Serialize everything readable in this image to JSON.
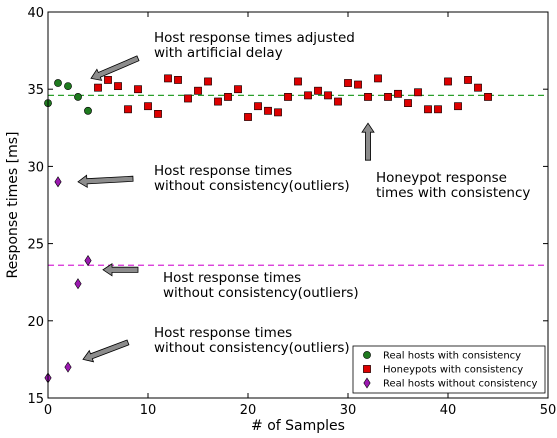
{
  "chart_data": {
    "type": "scatter",
    "xlabel": "# of Samples",
    "ylabel": "Response times [ms]",
    "xlim": [
      0,
      50
    ],
    "ylim": [
      15,
      40
    ],
    "xticks": [
      "0",
      "10",
      "20",
      "30",
      "40",
      "50"
    ],
    "yticks": [
      "15",
      "20",
      "25",
      "30",
      "35",
      "40"
    ],
    "grid": false,
    "legend_position": "bottom-right",
    "reference_lines": [
      {
        "y": 34.6,
        "color": "#2ca02c",
        "style": "dashed"
      },
      {
        "y": 23.6,
        "color": "#d62ad6",
        "style": "dashed"
      }
    ],
    "series": [
      {
        "name": "Real hosts with consistency",
        "marker": "circle",
        "color": "#1f7a1f",
        "points": [
          [
            0,
            34.1
          ],
          [
            1,
            35.4
          ],
          [
            2,
            35.2
          ],
          [
            3,
            34.5
          ],
          [
            4,
            33.6
          ]
        ]
      },
      {
        "name": "Honeypots with consistency",
        "marker": "square",
        "color": "#dd0000",
        "points": [
          [
            5,
            35.1
          ],
          [
            6,
            35.6
          ],
          [
            7,
            35.2
          ],
          [
            8,
            33.7
          ],
          [
            9,
            35.0
          ],
          [
            10,
            33.9
          ],
          [
            11,
            33.4
          ],
          [
            12,
            35.7
          ],
          [
            13,
            35.6
          ],
          [
            14,
            34.4
          ],
          [
            15,
            34.9
          ],
          [
            16,
            35.5
          ],
          [
            17,
            34.2
          ],
          [
            18,
            34.5
          ],
          [
            19,
            35.0
          ],
          [
            20,
            33.2
          ],
          [
            21,
            33.9
          ],
          [
            22,
            33.6
          ],
          [
            23,
            33.5
          ],
          [
            24,
            34.5
          ],
          [
            25,
            35.5
          ],
          [
            26,
            34.6
          ],
          [
            27,
            34.9
          ],
          [
            28,
            34.6
          ],
          [
            29,
            34.2
          ],
          [
            30,
            35.4
          ],
          [
            31,
            35.3
          ],
          [
            32,
            34.5
          ],
          [
            33,
            35.7
          ],
          [
            34,
            34.5
          ],
          [
            35,
            34.7
          ],
          [
            36,
            34.1
          ],
          [
            37,
            34.8
          ],
          [
            38,
            33.7
          ],
          [
            39,
            33.7
          ],
          [
            40,
            35.5
          ],
          [
            41,
            33.9
          ],
          [
            42,
            35.6
          ],
          [
            43,
            35.1
          ],
          [
            44,
            34.5
          ]
        ]
      },
      {
        "name": "Real hosts without consistency",
        "marker": "diamond",
        "color": "#9b19b0",
        "points": [
          [
            0,
            16.3
          ],
          [
            1,
            29.0
          ],
          [
            2,
            17.0
          ],
          [
            3,
            22.4
          ],
          [
            4,
            23.9
          ]
        ]
      }
    ],
    "annotations": [
      {
        "lines": [
          "Host response times adjusted",
          "with artificial delay"
        ],
        "arrow_from": [
          9.0,
          37.0
        ],
        "arrow_to": [
          4.3,
          35.7
        ]
      },
      {
        "lines": [
          "Host response times",
          "without consistency(outliers)"
        ],
        "arrow_from": [
          8.5,
          29.2
        ],
        "arrow_to": [
          3.0,
          29.0
        ]
      },
      {
        "lines": [
          "Honeypot response",
          "times with consistency"
        ],
        "arrow_from": [
          32.0,
          30.4
        ],
        "arrow_to": [
          32.0,
          32.8
        ]
      },
      {
        "lines": [
          "Host response times",
          "without consistency(outliers)"
        ],
        "arrow_from": [
          9.0,
          23.3
        ],
        "arrow_to": [
          5.5,
          23.3
        ]
      },
      {
        "lines": [
          "Host response times",
          "without consistency(outliers)"
        ],
        "arrow_from": [
          8.0,
          18.6
        ],
        "arrow_to": [
          3.5,
          17.5
        ]
      }
    ]
  }
}
